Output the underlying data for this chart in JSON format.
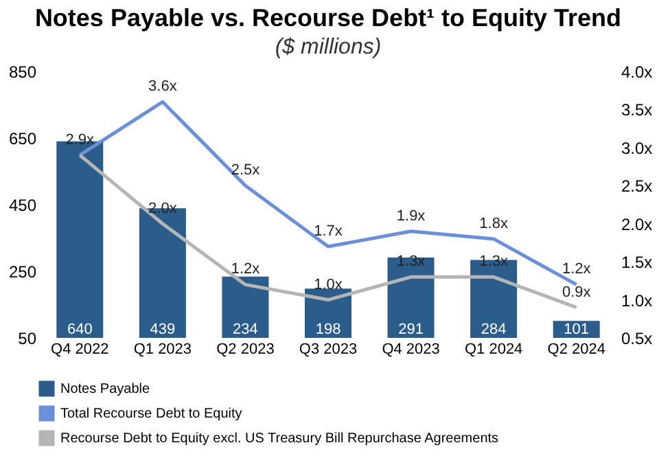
{
  "chart_data": {
    "type": "bar",
    "title": "Notes Payable vs. Recourse Debt¹ to Equity Trend",
    "subtitle": "($ millions)",
    "categories": [
      "Q4 2022",
      "Q1 2023",
      "Q2 2023",
      "Q3 2023",
      "Q4 2023",
      "Q1 2024",
      "Q2 2024"
    ],
    "series": [
      {
        "name": "Notes Payable",
        "type": "bar",
        "color": "#2b5d8c",
        "values": [
          640,
          439,
          234,
          198,
          291,
          284,
          101
        ],
        "data_labels": true
      },
      {
        "name": "Total Recourse Debt to Equity",
        "type": "line",
        "axis": "y2",
        "color": "#6b8fd8",
        "values": [
          2.9,
          3.6,
          2.5,
          1.7,
          1.9,
          1.8,
          1.2
        ],
        "value_labels": [
          "2.9x",
          "3.6x",
          "2.5x",
          "1.7x",
          "1.9x",
          "1.8x",
          "1.2x"
        ]
      },
      {
        "name": "Recourse Debt to Equity excl. US Treasury Bill Repurchase Agreements",
        "type": "line",
        "axis": "y2",
        "color": "#b5b5b5",
        "values": [
          2.9,
          2.0,
          1.2,
          1.0,
          1.3,
          1.3,
          0.9
        ],
        "value_labels": [
          null,
          "2.0x",
          "1.2x",
          "1.0x",
          "1.3x",
          "1.3x",
          "0.9x"
        ]
      }
    ],
    "ylim": [
      50,
      850
    ],
    "yticks": [
      50,
      250,
      450,
      650,
      850
    ],
    "y2lim": [
      0.5,
      4.0
    ],
    "y2ticks": [
      {
        "value": 0.5,
        "label": "0.5x"
      },
      {
        "value": 1.0,
        "label": "1.0x"
      },
      {
        "value": 1.5,
        "label": "1.5x"
      },
      {
        "value": 2.0,
        "label": "2.0x"
      },
      {
        "value": 2.5,
        "label": "2.5x"
      },
      {
        "value": 3.0,
        "label": "3.0x"
      },
      {
        "value": 3.5,
        "label": "3.5x"
      },
      {
        "value": 4.0,
        "label": "4.0x"
      }
    ],
    "grid": false,
    "legend": "bottom",
    "marker": "none",
    "line_style": "solid"
  }
}
